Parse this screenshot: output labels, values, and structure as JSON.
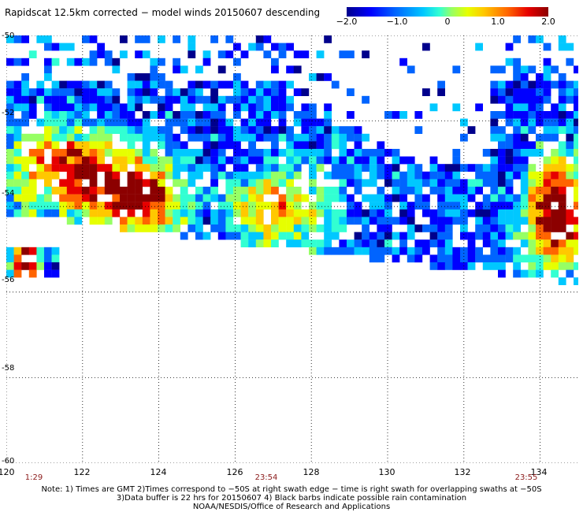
{
  "title": "Rapidscat 12.5km corrected − model winds 20150607 descending",
  "colorbar": {
    "labels": [
      "−2.0",
      "−1.0",
      "0",
      "1.0",
      "2.0"
    ],
    "min": -2.0,
    "max": 2.0
  },
  "map": {
    "lon_range": [
      120,
      135
    ],
    "lat_range": [
      -60,
      -50
    ],
    "x_ticks": [
      "120",
      "122",
      "124",
      "126",
      "128",
      "130",
      "132",
      "134"
    ],
    "y_ticks": [
      "-50",
      "-52",
      "-54",
      "-56",
      "-58",
      "-60"
    ],
    "times": [
      {
        "label": "1:29",
        "lon": 120.6
      },
      {
        "label": "23:54",
        "lon": 126.8
      },
      {
        "label": "23:55",
        "lon": 133.7
      }
    ],
    "colors": [
      "#00008c",
      "#0000ff",
      "#0064ff",
      "#00c8ff",
      "#32ffd2",
      "#96ff64",
      "#e6ff00",
      "#ffc800",
      "#ff6400",
      "#e60000",
      "#8c0000"
    ]
  },
  "notes": {
    "line1": "Note: 1) Times are GMT 2)Times correspond to −50S at right swath edge − time is right swath for overlapping swaths at −50S",
    "line2": "3)Data buffer is 22 hrs for 20150607 4) Black barbs indicate possible rain contamination",
    "line3": "NOAA/NESDIS/Office of Research and Applications"
  }
}
